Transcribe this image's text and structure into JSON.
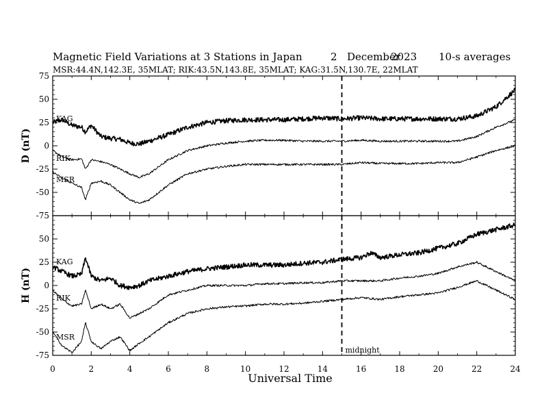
{
  "header": {
    "title": "Magnetic Field Variations at 3 Stations in Japan",
    "date_day": "2",
    "date_month": "December",
    "date_year": "2023",
    "averaging": "10-s averages",
    "stations_line": "MSR:44.4N,142.3E, 35MLAT;  RIK:43.5N,143.8E, 35MLAT;  KAG:31.5N,130.7E, 22MLAT"
  },
  "chart_data": [
    {
      "type": "line",
      "panel": "D",
      "ylabel": "D (nT)",
      "ylim": [
        -75,
        75
      ],
      "yticks": [
        -75,
        -50,
        -25,
        0,
        25,
        50,
        75
      ],
      "xlim": [
        0,
        24
      ],
      "xticks": [
        0,
        2,
        4,
        6,
        8,
        10,
        12,
        14,
        16,
        18,
        20,
        22,
        24
      ],
      "series": [
        {
          "name": "KAG",
          "style": "thick",
          "x": [
            0,
            0.5,
            1.0,
            1.5,
            1.7,
            2.0,
            2.5,
            3.0,
            3.5,
            4.0,
            4.5,
            5.0,
            6.0,
            7.0,
            8.0,
            9.0,
            10.0,
            11.0,
            12.0,
            13.0,
            14.0,
            15.0,
            16.0,
            17.0,
            18.0,
            19.0,
            20.0,
            21.0,
            22.0,
            23.0,
            24.0
          ],
          "values": [
            25,
            28,
            22,
            20,
            15,
            22,
            10,
            8,
            7,
            3,
            2,
            5,
            12,
            20,
            25,
            27,
            28,
            28,
            28,
            29,
            30,
            29,
            30,
            29,
            29,
            29,
            29,
            29,
            32,
            42,
            60
          ]
        },
        {
          "name": "RIK",
          "style": "thin",
          "x": [
            0,
            0.5,
            1.0,
            1.5,
            1.7,
            2.0,
            2.5,
            3.0,
            3.5,
            4.0,
            4.5,
            5.0,
            6.0,
            7.0,
            8.0,
            9.0,
            10.0,
            11.0,
            12.0,
            13.0,
            14.0,
            15.0,
            16.0,
            17.0,
            18.0,
            19.0,
            20.0,
            21.0,
            22.0,
            23.0,
            24.0
          ],
          "values": [
            -5,
            -12,
            -15,
            -14,
            -25,
            -15,
            -17,
            -20,
            -25,
            -30,
            -34,
            -30,
            -15,
            -5,
            0,
            3,
            5,
            6,
            6,
            5,
            5,
            5,
            6,
            5,
            5,
            5,
            5,
            5,
            10,
            20,
            28
          ]
        },
        {
          "name": "MSR",
          "style": "thin",
          "x": [
            0,
            0.5,
            1.0,
            1.5,
            1.7,
            2.0,
            2.5,
            3.0,
            3.5,
            4.0,
            4.5,
            5.0,
            6.0,
            7.0,
            8.0,
            9.0,
            10.0,
            11.0,
            12.0,
            13.0,
            14.0,
            15.0,
            16.0,
            17.0,
            18.0,
            19.0,
            20.0,
            21.0,
            22.0,
            23.0,
            24.0
          ],
          "values": [
            -28,
            -35,
            -40,
            -45,
            -58,
            -40,
            -38,
            -42,
            -50,
            -58,
            -62,
            -58,
            -42,
            -30,
            -25,
            -22,
            -20,
            -20,
            -20,
            -20,
            -20,
            -20,
            -18,
            -19,
            -19,
            -19,
            -18,
            -18,
            -12,
            -5,
            0
          ]
        }
      ],
      "annotations": [
        {
          "text": "KAG",
          "series": "KAG"
        },
        {
          "text": "RIK",
          "series": "RIK"
        },
        {
          "text": "MSR",
          "series": "MSR"
        }
      ]
    },
    {
      "type": "line",
      "panel": "H",
      "ylabel": "H (nT)",
      "xlabel": "Universal Time",
      "ylim": [
        -75,
        75
      ],
      "yticks": [
        -75,
        -50,
        -25,
        0,
        25,
        50
      ],
      "xlim": [
        0,
        24
      ],
      "xticks": [
        0,
        2,
        4,
        6,
        8,
        10,
        12,
        14,
        16,
        18,
        20,
        22,
        24
      ],
      "series": [
        {
          "name": "KAG",
          "style": "thick",
          "x": [
            0,
            0.5,
            1.0,
            1.5,
            1.7,
            2.0,
            2.5,
            3.0,
            3.5,
            4.0,
            4.5,
            5.0,
            6.0,
            7.0,
            8.0,
            9.0,
            10.0,
            11.0,
            12.0,
            13.0,
            14.0,
            15.0,
            16.0,
            16.5,
            17.0,
            18.0,
            19.0,
            20.0,
            21.0,
            22.0,
            23.0,
            24.0
          ],
          "values": [
            20,
            15,
            10,
            12,
            30,
            10,
            5,
            8,
            0,
            -2,
            0,
            5,
            10,
            15,
            18,
            20,
            22,
            22,
            22,
            24,
            25,
            28,
            30,
            35,
            30,
            33,
            35,
            40,
            45,
            55,
            60,
            65
          ]
        },
        {
          "name": "RIK",
          "style": "thin",
          "x": [
            0,
            0.5,
            1.0,
            1.5,
            1.7,
            2.0,
            2.5,
            3.0,
            3.5,
            4.0,
            4.5,
            5.0,
            6.0,
            7.0,
            8.0,
            9.0,
            10.0,
            11.0,
            12.0,
            13.0,
            14.0,
            15.0,
            16.0,
            17.0,
            18.0,
            19.0,
            20.0,
            21.0,
            22.0,
            23.0,
            24.0
          ],
          "values": [
            -5,
            -15,
            -22,
            -20,
            -5,
            -25,
            -20,
            -25,
            -20,
            -35,
            -30,
            -25,
            -10,
            -5,
            0,
            0,
            0,
            2,
            2,
            3,
            3,
            5,
            5,
            5,
            8,
            10,
            13,
            20,
            25,
            15,
            5
          ]
        },
        {
          "name": "MSR",
          "style": "thin",
          "x": [
            0,
            0.5,
            1.0,
            1.5,
            1.7,
            2.0,
            2.5,
            3.0,
            3.5,
            4.0,
            4.5,
            5.0,
            6.0,
            7.0,
            8.0,
            9.0,
            10.0,
            11.0,
            12.0,
            13.0,
            14.0,
            15.0,
            16.0,
            17.0,
            18.0,
            19.0,
            20.0,
            21.0,
            22.0,
            23.0,
            24.0
          ],
          "values": [
            -50,
            -65,
            -72,
            -60,
            -40,
            -60,
            -68,
            -60,
            -55,
            -70,
            -62,
            -55,
            -40,
            -30,
            -25,
            -23,
            -22,
            -20,
            -20,
            -19,
            -17,
            -15,
            -13,
            -15,
            -12,
            -10,
            -8,
            -2,
            5,
            -5,
            -15
          ]
        }
      ],
      "annotations": [
        {
          "text": "KAG",
          "series": "KAG"
        },
        {
          "text": "RIK",
          "series": "RIK"
        },
        {
          "text": "MSR",
          "series": "MSR"
        }
      ]
    }
  ],
  "midnight_marker": {
    "x": 15,
    "label": "midnight"
  }
}
